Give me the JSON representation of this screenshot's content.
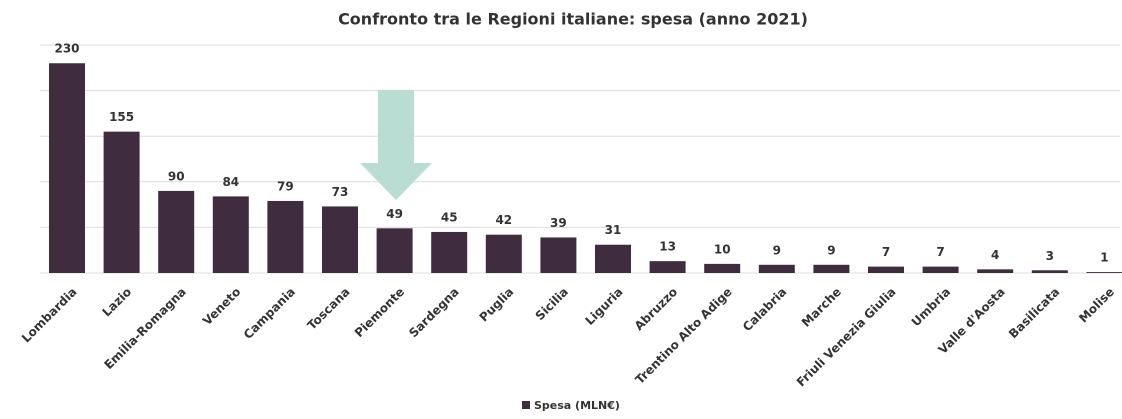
{
  "chart_data": {
    "type": "bar",
    "title": "Confronto tra le Regioni italiane: spesa (anno 2021)",
    "categories": [
      "Lombardia",
      "Lazio",
      "Emilia-Romagna",
      "Veneto",
      "Campania",
      "Toscana",
      "Piemonte",
      "Sardegna",
      "Puglia",
      "Sicilia",
      "Liguria",
      "Abruzzo",
      "Trentino Alto Adige",
      "Calabria",
      "Marche",
      "Friuli Venezia Giulia",
      "Umbria",
      "Valle d'Aosta",
      "Basilicata",
      "Molise"
    ],
    "series": [
      {
        "name": "Spesa (MLN€)",
        "color": "#3f2d3f",
        "values": [
          230,
          155,
          90,
          84,
          79,
          73,
          49,
          45,
          42,
          39,
          31,
          13,
          10,
          9,
          9,
          7,
          7,
          4,
          3,
          1
        ]
      }
    ],
    "ylim": [
      0,
      250
    ],
    "yticks": [
      0,
      50,
      100,
      150,
      200,
      250
    ],
    "grid": true
  }
}
